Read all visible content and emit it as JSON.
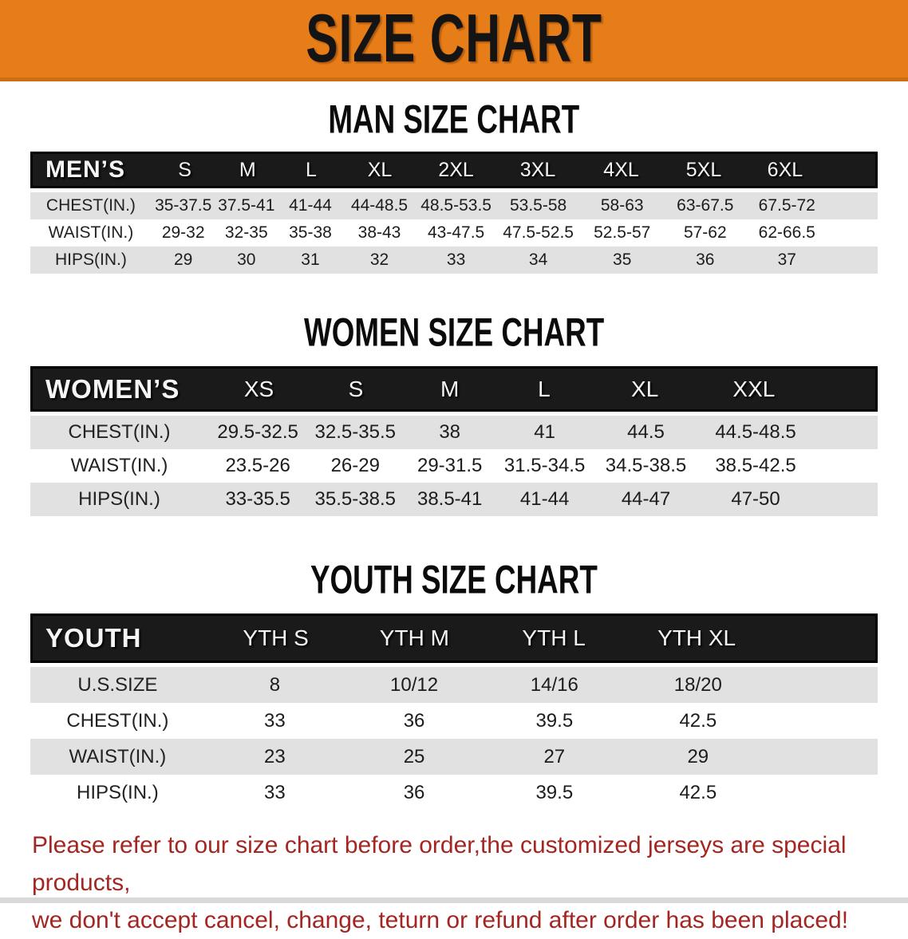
{
  "banner": {
    "title": "SIZE CHART"
  },
  "sections": {
    "men": {
      "title": "MAN SIZE CHART",
      "header": [
        "MEN’S",
        "S",
        "M",
        "L",
        "XL",
        "2XL",
        "3XL",
        "4XL",
        "5XL",
        "6XL"
      ],
      "rows": [
        {
          "label": "CHEST(IN.)",
          "cells": [
            "35-37.5",
            "37.5-41",
            "41-44",
            "44-48.5",
            "48.5-53.5",
            "53.5-58",
            "58-63",
            "63-67.5",
            "67.5-72"
          ]
        },
        {
          "label": "WAIST(IN.)",
          "cells": [
            "29-32",
            "32-35",
            "35-38",
            "38-43",
            "43-47.5",
            "47.5-52.5",
            "52.5-57",
            "57-62",
            "62-66.5"
          ]
        },
        {
          "label": "HIPS(IN.)",
          "cells": [
            "29",
            "30",
            "31",
            "32",
            "33",
            "34",
            "35",
            "36",
            "37"
          ]
        }
      ]
    },
    "women": {
      "title": "WOMEN SIZE CHART",
      "header": [
        "WOMEN’S",
        "XS",
        "S",
        "M",
        "L",
        "XL",
        "XXL"
      ],
      "rows": [
        {
          "label": "CHEST(IN.)",
          "cells": [
            "29.5-32.5",
            "32.5-35.5",
            "38",
            "41",
            "44.5",
            "44.5-48.5"
          ]
        },
        {
          "label": "WAIST(IN.)",
          "cells": [
            "23.5-26",
            "26-29",
            "29-31.5",
            "31.5-34.5",
            "34.5-38.5",
            "38.5-42.5"
          ]
        },
        {
          "label": "HIPS(IN.)",
          "cells": [
            "33-35.5",
            "35.5-38.5",
            "38.5-41",
            "41-44",
            "44-47",
            "47-50"
          ]
        }
      ]
    },
    "youth": {
      "title": "YOUTH SIZE CHART",
      "header": [
        "YOUTH",
        "YTH S",
        "YTH M",
        "YTH L",
        "YTH XL"
      ],
      "rows": [
        {
          "label": "U.S.SIZE",
          "cells": [
            "8",
            "10/12",
            "14/16",
            "18/20"
          ]
        },
        {
          "label": "CHEST(IN.)",
          "cells": [
            "33",
            "36",
            "39.5",
            "42.5"
          ]
        },
        {
          "label": "WAIST(IN.)",
          "cells": [
            "23",
            "25",
            "27",
            "29"
          ]
        },
        {
          "label": "HIPS(IN.)",
          "cells": [
            "33",
            "36",
            "39.5",
            "42.5"
          ]
        }
      ]
    }
  },
  "disclaimer": {
    "line1": "Please refer to our size chart before order,the customized jerseys are special products,",
    "line2": "we don't accept cancel, change, teturn or refund after order has been placed!"
  },
  "colors": {
    "banner_orange": "#e67d18",
    "header_black": "#1a1a1a",
    "row_gray": "#e1e1e1",
    "disclaimer_red": "#a32622"
  }
}
